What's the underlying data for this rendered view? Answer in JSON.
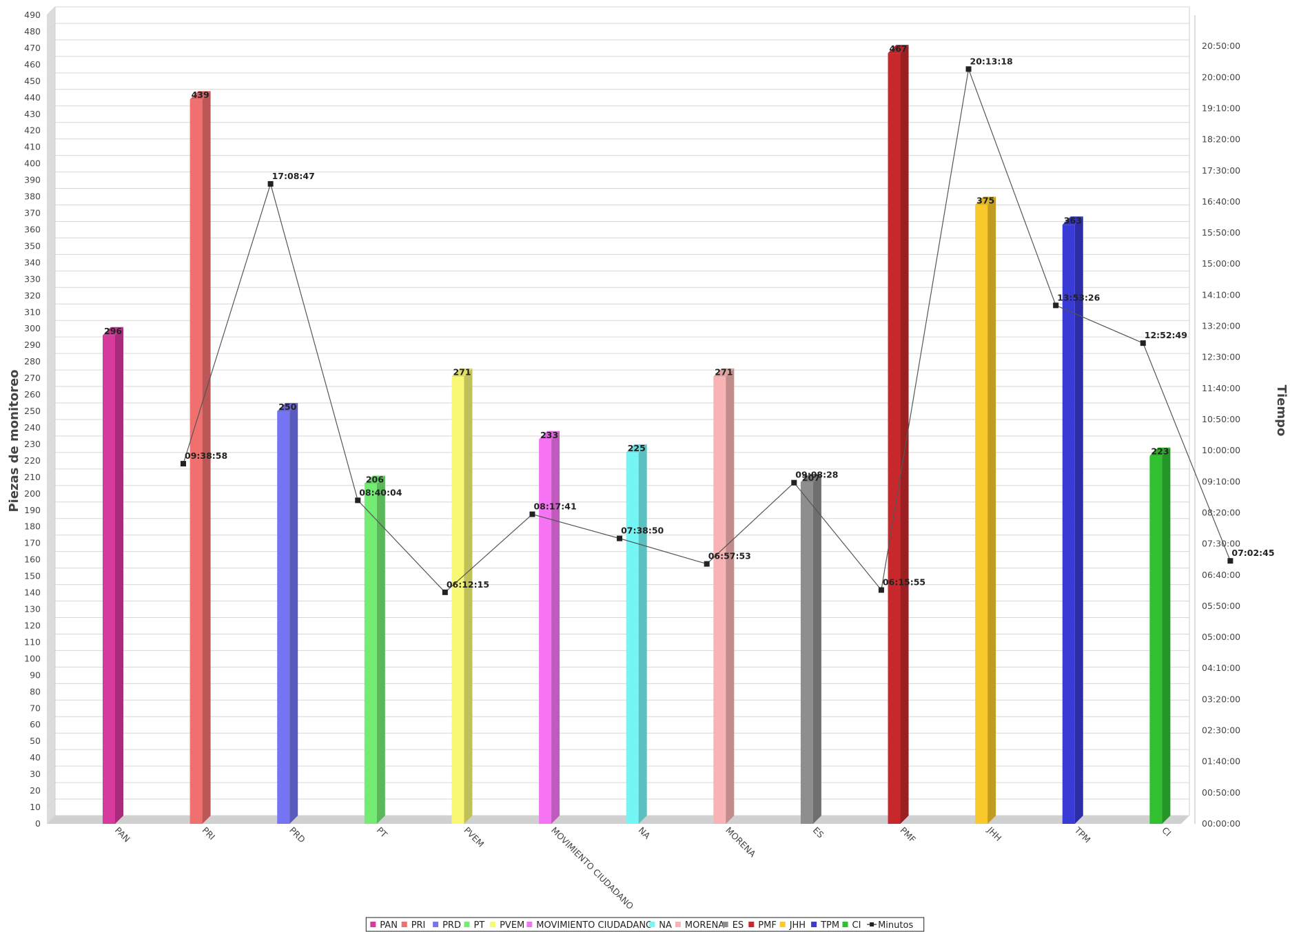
{
  "chart_data": {
    "type": "bar",
    "xlabel": "",
    "ylabel": "Piezas de monitoreo",
    "y2label": "Tiempo",
    "ylim": [
      0,
      490
    ],
    "y_ticks": [
      0,
      10,
      20,
      30,
      40,
      50,
      60,
      70,
      80,
      90,
      100,
      110,
      120,
      130,
      140,
      150,
      160,
      170,
      180,
      190,
      200,
      210,
      220,
      230,
      240,
      250,
      260,
      270,
      280,
      290,
      300,
      310,
      320,
      330,
      340,
      350,
      360,
      370,
      380,
      390,
      400,
      410,
      420,
      430,
      440,
      450,
      460,
      470,
      480,
      490
    ],
    "y2lim_seconds": [
      0,
      78000
    ],
    "y2_ticks": [
      "00:00:00",
      "00:50:00",
      "01:40:00",
      "02:30:00",
      "03:20:00",
      "04:10:00",
      "05:00:00",
      "05:50:00",
      "06:40:00",
      "07:30:00",
      "08:20:00",
      "09:10:00",
      "10:00:00",
      "10:50:00",
      "11:40:00",
      "12:30:00",
      "13:20:00",
      "14:10:00",
      "15:00:00",
      "15:50:00",
      "16:40:00",
      "17:30:00",
      "18:20:00",
      "19:10:00",
      "20:00:00",
      "20:50:00"
    ],
    "grid": true,
    "legend_position": "bottom",
    "categories": [
      "PAN",
      "PRI",
      "PRD",
      "PT",
      "PVEM",
      "MOVIMIENTO CIUDADANO",
      "NA",
      "MORENA",
      "ES",
      "PMF",
      "JHH",
      "TPM",
      "CI"
    ],
    "values": [
      296,
      439,
      250,
      206,
      271,
      233,
      225,
      271,
      207,
      467,
      375,
      363,
      223
    ],
    "value_labels": [
      "296",
      "439",
      "250",
      "206",
      "271",
      "233",
      "225",
      "271",
      "207",
      "467",
      "375",
      "363",
      "223"
    ],
    "colors": [
      "#d63a9c",
      "#f07070",
      "#7474f4",
      "#74ec74",
      "#f8f874",
      "#f674f4",
      "#74f6f6",
      "#f8b4b4",
      "#8e8e8e",
      "#c8282c",
      "#f8c82c",
      "#3a3ad6",
      "#30c030"
    ],
    "line_series": {
      "name": "Minutos",
      "color": "#555555",
      "values": [
        "09:38:58",
        "17:08:47",
        "08:40:04",
        "06:12:15",
        "08:17:41",
        "07:38:50",
        "06:57:53",
        "09:08:28",
        "06:15:55",
        "20:13:18",
        "13:53:26",
        "12:52:49",
        "07:02:45"
      ]
    }
  }
}
